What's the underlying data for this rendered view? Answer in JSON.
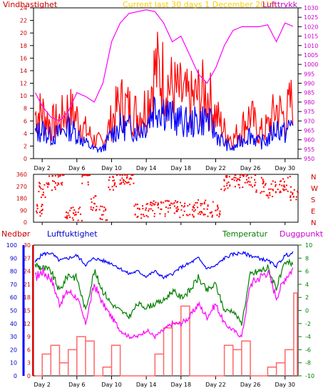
{
  "header": {
    "left": "Vindhastighet",
    "center": "Current last 30 days 1 December 2019",
    "right": "Lufttrykk"
  },
  "bottom_header": {
    "left_a": "Nedbør",
    "left_b": "Luftfuktighet",
    "right_a": "Temperatur",
    "right_b": "Duggpunkt"
  },
  "compass": [
    "N",
    "W",
    "S",
    "E",
    "N"
  ],
  "colors": {
    "wind": "#ff0000",
    "wind_avg": "#0000ff",
    "pressure": "#ff00ff",
    "humidity": "#0000ff",
    "temperature": "#008000",
    "dewpoint": "#ff00ff",
    "precipitation": "#ff6666",
    "header_left": "#cc0000",
    "header_center": "#ffcc00",
    "header_right": "#cc00cc",
    "nedbor": "#cc0000",
    "luftfuktighet": "#0000cc",
    "temperatur": "#008000",
    "duggpunkt": "#cc00cc"
  },
  "chart_data": [
    {
      "type": "line",
      "title": "Current last 30 days 1 December 2019",
      "x_tick_labels": [
        "Day 2",
        "Day 6",
        "Day 10",
        "Day 14",
        "Day 18",
        "Day 22",
        "Day 26",
        "Day 30"
      ],
      "y_left_label": "Vindhastighet",
      "y_left_ticks": [
        0,
        2,
        4,
        6,
        8,
        10,
        12,
        14,
        16,
        18,
        20,
        22,
        24
      ],
      "y_right_label": "Lufttrykk",
      "y_right_ticks": [
        950,
        955,
        960,
        965,
        970,
        975,
        980,
        985,
        990,
        995,
        1000,
        1005,
        1010,
        1015,
        1020,
        1025,
        1030
      ],
      "x": [
        1.2,
        2,
        3,
        4,
        5,
        6,
        7,
        8,
        9,
        10,
        11,
        12,
        13,
        14,
        15,
        16,
        17,
        18,
        19,
        20,
        21,
        22,
        23,
        24,
        25,
        26,
        27,
        28,
        29,
        30,
        31
      ],
      "series": [
        {
          "name": "Vindhastighet",
          "axis": "left",
          "values": [
            7,
            7.5,
            5.5,
            6,
            8,
            6.5,
            4.5,
            3,
            2.5,
            6,
            9,
            8,
            7,
            8.5,
            14,
            13,
            11,
            10,
            9,
            10,
            10.5,
            7,
            4.5,
            3,
            5,
            7,
            4,
            5,
            8,
            6.5,
            10
          ]
        },
        {
          "name": "",
          "axis": "left",
          "values": [
            4,
            4.5,
            3.5,
            4,
            5,
            4,
            2.5,
            1.5,
            1.5,
            4,
            5,
            5,
            4.5,
            5.5,
            8.5,
            8,
            6.5,
            6,
            5.5,
            6,
            6.5,
            4,
            2.5,
            1.5,
            3,
            4,
            2.5,
            3,
            5,
            4,
            6
          ]
        },
        {
          "name": "Lufttrykk",
          "axis": "right",
          "values": [
            985,
            978,
            972,
            970,
            975,
            985,
            983,
            980,
            990,
            1012,
            1022,
            1027,
            1028,
            1029,
            1028,
            1022,
            1012,
            1015,
            1005,
            995,
            990,
            998,
            1010,
            1018,
            1020,
            1020,
            1020,
            1021,
            1012,
            1022,
            1020
          ]
        }
      ]
    },
    {
      "type": "scatter",
      "x_tick_labels": [
        "Day 2",
        "Day 6",
        "Day 10",
        "Day 14",
        "Day 18",
        "Day 22",
        "Day 26",
        "Day 30"
      ],
      "y_ticks": [
        0,
        90,
        180,
        270,
        360
      ],
      "y_right_labels": [
        "N",
        "W",
        "S",
        "E",
        "N"
      ],
      "series": [
        {
          "name": "",
          "points": [
            [
              1.5,
              110
            ],
            [
              2,
              250
            ],
            [
              3,
              300
            ],
            [
              4,
              330
            ],
            [
              5,
              90
            ],
            [
              6,
              70
            ],
            [
              7,
              340
            ],
            [
              8,
              150
            ],
            [
              9,
              80
            ],
            [
              10,
              300
            ],
            [
              11,
              340
            ],
            [
              12,
              340
            ],
            [
              13,
              90
            ],
            [
              14,
              100
            ],
            [
              15,
              110
            ],
            [
              16,
              110
            ],
            [
              17,
              110
            ],
            [
              18,
              100
            ],
            [
              19,
              100
            ],
            [
              20,
              120
            ],
            [
              21,
              110
            ],
            [
              22,
              100
            ],
            [
              23,
              300
            ],
            [
              24,
              320
            ],
            [
              25,
              320
            ],
            [
              26,
              330
            ],
            [
              27,
              280
            ],
            [
              28,
              240
            ],
            [
              29,
              260
            ],
            [
              30,
              290
            ],
            [
              31,
              220
            ]
          ]
        }
      ]
    },
    {
      "type": "line",
      "x_tick_labels": [
        "Day 2",
        "Day 6",
        "Day 10",
        "Day 14",
        "Day 18",
        "Day 22",
        "Day 26",
        "Day 30"
      ],
      "y_left_label": "Luftfuktighet",
      "y_left_ticks": [
        0,
        10,
        20,
        30,
        40,
        50,
        60,
        70,
        80,
        90,
        100
      ],
      "y_precip_label": "Nedbør",
      "y_precip_ticks": [
        0,
        3,
        6,
        9,
        12,
        15,
        18,
        21,
        24,
        27,
        30
      ],
      "y_right_label": "Temperatur",
      "y_right_ticks": [
        -10,
        -8,
        -6,
        -4,
        -2,
        0,
        2,
        4,
        6,
        8,
        10
      ],
      "x": [
        1.2,
        2,
        3,
        4,
        5,
        6,
        7,
        8,
        9,
        10,
        11,
        12,
        13,
        14,
        15,
        16,
        17,
        18,
        19,
        20,
        21,
        22,
        23,
        24,
        25,
        26,
        27,
        28,
        29,
        30,
        31
      ],
      "series": [
        {
          "name": "Luftfuktighet",
          "axis": "humidity",
          "values": [
            87,
            93,
            94,
            88,
            90,
            92,
            85,
            90,
            88,
            86,
            82,
            78,
            80,
            76,
            80,
            75,
            78,
            83,
            86,
            90,
            82,
            84,
            90,
            93,
            94,
            92,
            90,
            88,
            84,
            92,
            94
          ]
        },
        {
          "name": "Temperatur",
          "axis": "temp",
          "values": [
            7,
            6.5,
            6,
            3,
            5.5,
            5,
            0,
            6,
            3,
            1,
            0,
            -1,
            1,
            0.5,
            1,
            1.5,
            3,
            2,
            3,
            5,
            3,
            4,
            0,
            0,
            -2,
            5.5,
            6,
            6.5,
            3.5,
            7,
            7.5
          ]
        },
        {
          "name": "Duggpunkt",
          "axis": "temp",
          "values": [
            5,
            6,
            5,
            1,
            3,
            2,
            -2,
            4,
            1,
            -1,
            -3,
            -4,
            -4,
            -3,
            -4,
            -3,
            -2,
            -2,
            -1,
            1,
            -1,
            1,
            -2,
            -3,
            -4,
            4,
            5,
            6,
            2,
            5,
            6.5
          ]
        },
        {
          "name": "Nedbør",
          "axis": "precip",
          "values": [
            0,
            5,
            7,
            3,
            6,
            9,
            8,
            0,
            2,
            7,
            0,
            0,
            0,
            0,
            5,
            11,
            12,
            16,
            0,
            0,
            0,
            0,
            7,
            6,
            8,
            0,
            0,
            2,
            3,
            6,
            19
          ]
        }
      ]
    }
  ]
}
